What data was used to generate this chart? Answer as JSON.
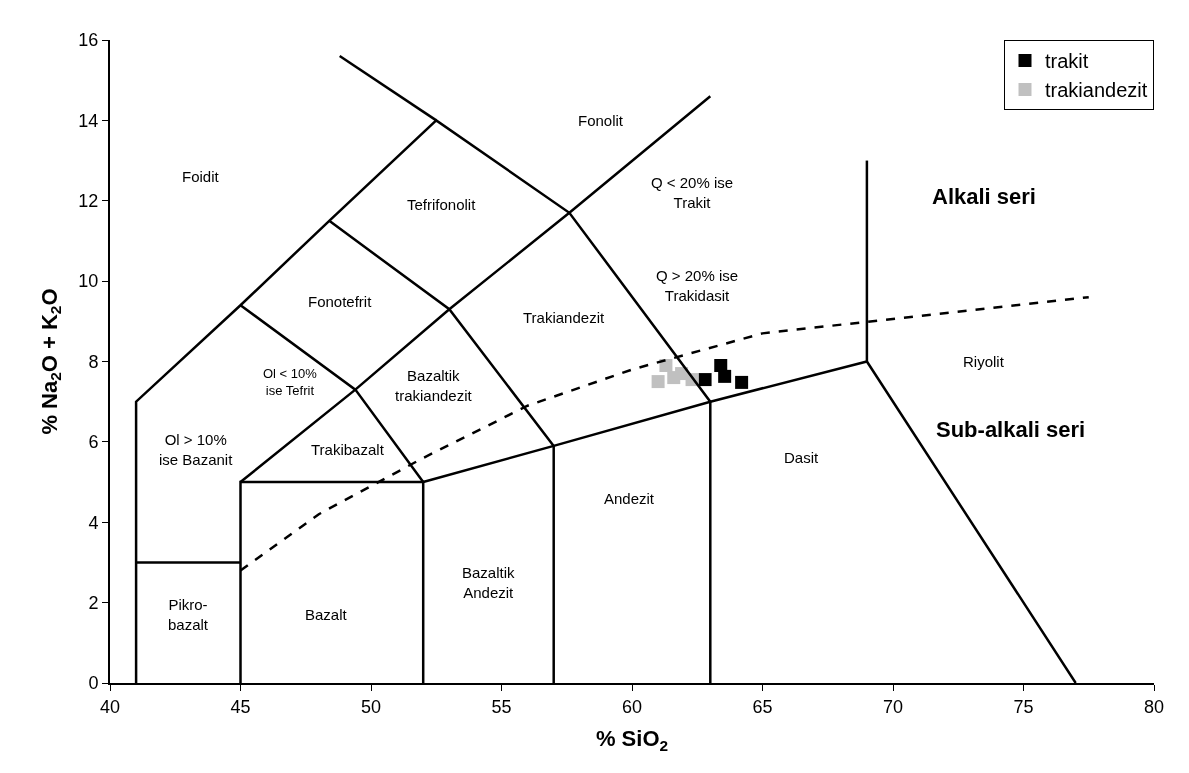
{
  "chart_data": {
    "type": "scatter",
    "xlabel": "% SiO$_{2}$",
    "ylabel": "% Na$_{2}$O + K$_{2}$O",
    "xlim": [
      40,
      80
    ],
    "xticks": [
      40,
      45,
      50,
      55,
      60,
      65,
      70,
      75,
      80
    ],
    "ylim": [
      0,
      16
    ],
    "yticks": [
      0,
      2,
      4,
      6,
      8,
      10,
      12,
      14,
      16
    ],
    "legend": "top right",
    "series": [
      {
        "name": "trakit",
        "color": "#000000",
        "marker": "square",
        "x": [
          63.4,
          62.8,
          63.55,
          64.2
        ],
        "values": [
          7.9,
          7.55,
          7.63,
          7.48
        ]
      },
      {
        "name": "trakiandezit",
        "color": "#c0c0c0",
        "marker": "square",
        "x": [
          61.3,
          61.0,
          61.9,
          62.3,
          61.6
        ],
        "values": [
          7.9,
          7.5,
          7.7,
          7.55,
          7.6
        ]
      },
      {
        "type": "line",
        "color": "#000000",
        "x": [
          41,
          41,
          45,
          48.4,
          52.5,
          57.6,
          63,
          63
        ],
        "values": [
          0,
          7,
          9.4,
          11.5,
          14,
          11.7,
          7,
          0
        ]
      },
      {
        "type": "line",
        "color": "#000000",
        "x": [
          48.8,
          52.5
        ],
        "values": [
          15.6,
          14
        ]
      },
      {
        "type": "line",
        "color": "#000000",
        "x": [
          41,
          45
        ],
        "values": [
          3,
          3
        ]
      },
      {
        "type": "line",
        "color": "#000000",
        "x": [
          45,
          45,
          52,
          52
        ],
        "values": [
          0,
          5,
          5,
          0
        ]
      },
      {
        "type": "line",
        "color": "#000000",
        "x": [
          45,
          49.4,
          53,
          57.6,
          63
        ],
        "values": [
          5,
          7.3,
          9.3,
          11.7,
          14.6
        ]
      },
      {
        "type": "line",
        "color": "#000000",
        "x": [
          45,
          49.4,
          52
        ],
        "values": [
          9.4,
          7.3,
          5
        ]
      },
      {
        "type": "line",
        "color": "#000000",
        "x": [
          48.4,
          53,
          57
        ],
        "values": [
          11.5,
          9.3,
          5.9
        ]
      },
      {
        "type": "line",
        "color": "#000000",
        "x": [
          52,
          57,
          63,
          69,
          77
        ],
        "values": [
          5,
          5.9,
          7,
          8,
          0
        ]
      },
      {
        "type": "line",
        "color": "#000000",
        "x": [
          57,
          57
        ],
        "values": [
          5.9,
          0
        ]
      },
      {
        "type": "line",
        "color": "#000000",
        "x": [
          69,
          69
        ],
        "values": [
          8,
          13
        ]
      },
      {
        "type": "line",
        "color": "#000000",
        "line_style": "dashed",
        "x": [
          45,
          48,
          52,
          56,
          60,
          65,
          77.5
        ],
        "values": [
          2.8,
          4.2,
          5.6,
          6.9,
          7.8,
          8.7,
          9.6
        ]
      }
    ],
    "annotations": [
      "Foidit",
      "Fonolit",
      "Tefrifonolit",
      "Fonotefrit",
      "Ol < 10%\nise Tefrit",
      "Ol > 10%\nise Bazanit",
      "Trakibazalt",
      "Bazaltik\ntrakiandezit",
      "Trakiandezit",
      "Q < 20% ise\nTrakit",
      "Q > 20% ise\nTrakidasit",
      "Pikro-\nbazalt",
      "Bazalt",
      "Bazaltik\nAndezit",
      "Andezit",
      "Dasit",
      "Riyolit",
      "Alkali seri",
      "Sub-alkali seri"
    ]
  }
}
